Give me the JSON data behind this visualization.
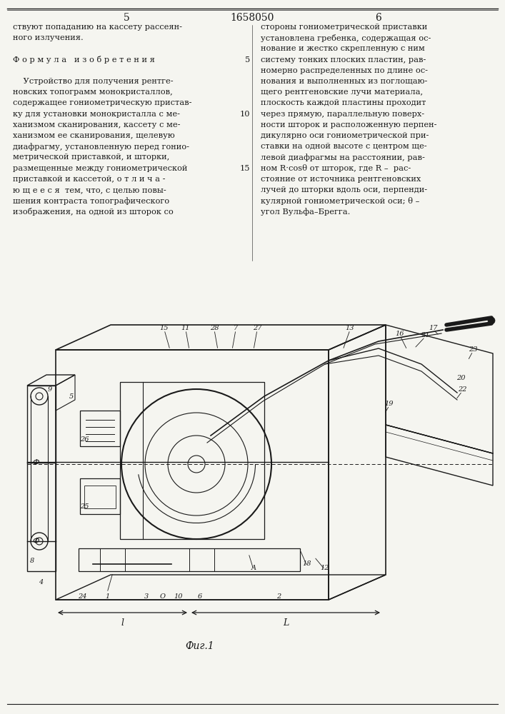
{
  "page_number_left": "5",
  "page_number_right": "6",
  "patent_number": "1658050",
  "col_left_text": [
    "ствуют попаданию на кассету рассеян-",
    "ного излучения.",
    "",
    "Ф о р м у л а   и з о б р е т е н и я",
    "",
    "    Устройство для получения рентге-",
    "новских топограмм монокристаллов,",
    "содержащее гониометрическую пристав-",
    "ку для установки монокристалла с ме-",
    "ханизмом сканирования, кассету с ме-",
    "ханизмом ее сканирования, щелевую",
    "диафрагму, установленную перед гонио-",
    "метрической приставкой, и шторки,",
    "размещенные между гониометрической",
    "приставкой и кассетой, о т л и ч а -",
    "ю щ е е с я  тем, что, с целью повы-",
    "шения контраста топографического",
    "изображения, на одной из шторок со"
  ],
  "col_right_text": [
    "стороны гониометрической приставки",
    "установлена гребенка, содержащая ос-",
    "нование и жестко скрепленную с ним",
    "систему тонких плоских пластин, рав-",
    "номерно распределенных по длине ос-",
    "нования и выполненных из поглощаю-",
    "щего рентгеновские лучи материала,",
    "плоскость каждой пластины проходит",
    "через прямую, параллельную поверх-",
    "ности шторок и расположенную перпен-",
    "дикулярно оси гониометрической при-",
    "ставки на одной высоте с центром ще-",
    "левой диафрагмы на расстоянии, рав-",
    "ном R·cosθ от шторок, где R –  рас-",
    "стояние от источника рентгеновских",
    "лучей до шторки вдоль оси, перпенди-",
    "кулярной гониометрической оси; θ –",
    "угол Вульфа–Брегга."
  ],
  "line_numbers_right": [
    [
      "5",
      3
    ],
    [
      "10",
      8
    ],
    [
      "15",
      13
    ]
  ],
  "fig_label": "Фиг.1",
  "background_color": "#f5f5f0",
  "text_color": "#1a1a1a",
  "line_color": "#1a1a1a"
}
